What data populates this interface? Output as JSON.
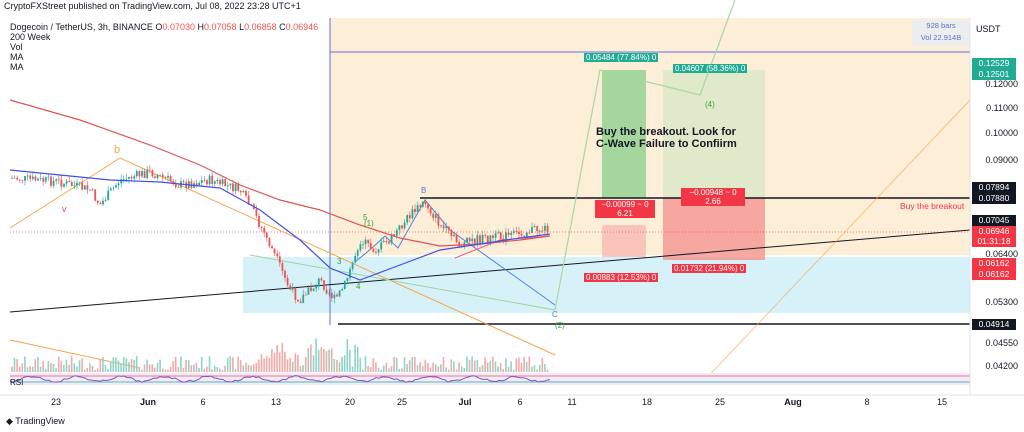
{
  "caption": "CryptoFXStreet published on TradingView.com, Jul 08, 2022 23:28 UTC+1",
  "legend": {
    "symbol": "Dogecoin / TetherUS, 3h, BINANCE",
    "o_label": "O",
    "o_value": "0.07030",
    "h_label": "H",
    "h_value": "0.07058",
    "l_label": "L",
    "l_value": "0.06858",
    "c_label": "C",
    "c_value": "0.06946",
    "indicators": [
      "200 Week",
      "Vol",
      "MA",
      "MA"
    ]
  },
  "axis": {
    "currency": "USDT",
    "price_labels": [
      "0.12000",
      "0.11000",
      "0.10000",
      "0.09000",
      "0.06400",
      "0.05300",
      "0.04550",
      "0.04200"
    ],
    "tags": {
      "t1": "0.12529",
      "t2": "0.12501",
      "t3": "0.07894",
      "t4": "0.07880",
      "t5": "0.07045",
      "t6": "0.06946",
      "t7": "01:31:18",
      "t8": "0.06162",
      "t9": "0.06162",
      "t10": "0.04914"
    }
  },
  "dates": [
    "23",
    "Jun",
    "6",
    "13",
    "20",
    "25",
    "Jul",
    "6",
    "11",
    "18",
    "25",
    "Aug",
    "8",
    "15"
  ],
  "bars_info": {
    "bars": "928 bars",
    "vol": "Vol 22.914B"
  },
  "positions": {
    "p1_top": "0.05484 (77.84%) 0",
    "p2_top": "0.04607 (58.36%) 0",
    "p1_mid_a": "−0.00099 ~ 0",
    "p1_mid_b": "6.21",
    "p2_mid_a": "−0.00948 ~ 0",
    "p2_mid_b": "2.66",
    "p1_bottom": "0.00883 (12.53%) 0",
    "p2_bottom": "0.01732 (21.94%) 0"
  },
  "annotations": {
    "note_line1": "Buy the breakout. Look for",
    "note_line2": "C-Wave Failure to Confiirm",
    "breakout": "Buy the breakout",
    "wave_b_orange": "b",
    "wave_v": "v",
    "wave_B": "B",
    "wave_C": "C",
    "wave_1": "(1)",
    "wave_2": "(2)",
    "wave_3": "3",
    "wave_4": "4",
    "wave_4p": "(4)",
    "wave_5": "5"
  },
  "rsi_label": "RSI",
  "logo": "TradingView",
  "colors": {
    "bull": "#26a69a",
    "bear": "#ef5350",
    "ma_blue": "#3f51e8",
    "ma_red": "#e04848",
    "zone_orange": "#fde9cc",
    "zone_cyan": "#d4f1f7"
  }
}
